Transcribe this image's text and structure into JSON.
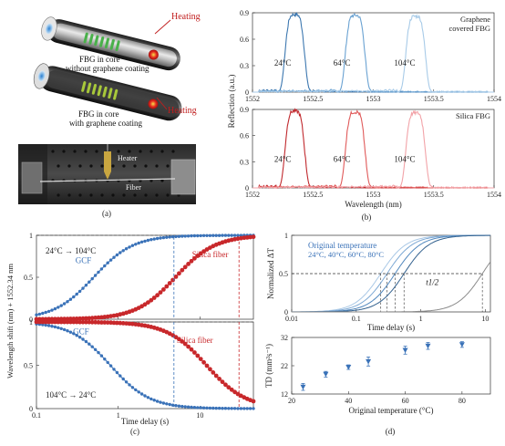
{
  "panel_a": {
    "labels": {
      "heating": "Heating",
      "fiber_top": [
        "FBG in core",
        "without graphene coating"
      ],
      "fiber_bottom": [
        "FBG in core",
        "with graphene coating"
      ],
      "heater": "Heater",
      "fiber": "Fiber"
    },
    "caption": "(a)"
  },
  "captions": {
    "b": "(b)",
    "c": "(c)",
    "d": "(d)"
  },
  "chart_data": [
    {
      "id": "b-top",
      "type": "line",
      "legend_text": [
        "Graphene",
        "covered FBG"
      ],
      "ylabel": "Reflection (a.u.)",
      "xlim": [
        1552,
        1554
      ],
      "ylim": [
        0,
        0.9
      ],
      "xticks": [
        "1552",
        "1552.5",
        "1553",
        "1553.5",
        "1554"
      ],
      "yticks": [
        "0",
        "0.3",
        "0.6",
        "0.9"
      ],
      "annotations": [
        "24°C",
        "64°C",
        "104°C"
      ],
      "series": [
        {
          "center": 1552.35,
          "peak": 0.88,
          "color": "#3d78b0"
        },
        {
          "center": 1552.85,
          "peak": 0.87,
          "color": "#6aa2d2"
        },
        {
          "center": 1553.35,
          "peak": 0.86,
          "color": "#a8cbe8"
        }
      ]
    },
    {
      "id": "b-bottom",
      "type": "line",
      "legend_text": [
        "Silica FBG"
      ],
      "xlabel": "Wavelength (nm)",
      "xlim": [
        1552,
        1554
      ],
      "ylim": [
        0,
        0.9
      ],
      "xticks": [
        "1552",
        "1552.5",
        "1553",
        "1553.5",
        "1554"
      ],
      "yticks": [
        "0",
        "0.3",
        "0.6",
        "0.9"
      ],
      "annotations": [
        "24°C",
        "64°C",
        "104°C"
      ],
      "series": [
        {
          "center": 1552.35,
          "peak": 0.88,
          "color": "#c0282d"
        },
        {
          "center": 1552.85,
          "peak": 0.87,
          "color": "#e05a5a"
        },
        {
          "center": 1553.35,
          "peak": 0.86,
          "color": "#f2a3a8"
        }
      ]
    },
    {
      "id": "c",
      "type": "scatter",
      "ylabel": "Wavelength shift (nm) + 1552.34 nm",
      "xlabel": "Time delay (s)",
      "xscale": "log",
      "xlim": [
        0.1,
        45
      ],
      "ylim": [
        0,
        1
      ],
      "xticks": [
        "0.1",
        "1",
        "10"
      ],
      "yticks": [
        "0",
        "0.5",
        "1"
      ],
      "top_panel": {
        "label": "24°C → 104°C",
        "series": [
          {
            "name": "GCF",
            "color": "#3a72b8",
            "t_half": 0.5,
            "shape": "heating"
          },
          {
            "name": "Silica fiber",
            "color": "#c8282b",
            "t_half": 5,
            "shape": "heating"
          }
        ],
        "markers": [
          4.8,
          30
        ]
      },
      "bottom_panel": {
        "label": "104°C → 24°C",
        "series": [
          {
            "name": "GCF",
            "color": "#3a72b8",
            "t_half": 0.8,
            "shape": "cooling"
          },
          {
            "name": "Silica fiber",
            "color": "#c8282b",
            "t_half": 12,
            "shape": "cooling"
          }
        ],
        "markers": [
          4.8,
          30
        ]
      }
    },
    {
      "id": "d-top",
      "type": "line",
      "ylabel": "Normalized ΔT",
      "xlabel": "Time delay (s)",
      "xscale": "log",
      "xlim": [
        0.01,
        12
      ],
      "ylim": [
        0,
        1
      ],
      "xticks": [
        "0.01",
        "0.1",
        "1",
        "10"
      ],
      "yticks": [
        "0",
        "0.5",
        "1"
      ],
      "legend_title": "Original temperature",
      "legend_temps": "24°C, 40°C, 60°C, 80°C",
      "annotation": "t1/2",
      "series": [
        {
          "t_half": 0.24,
          "color": "#a9c8e6"
        },
        {
          "t_half": 0.3,
          "color": "#7ca8d4"
        },
        {
          "t_half": 0.4,
          "color": "#4f86bd"
        },
        {
          "t_half": 0.55,
          "color": "#34628f"
        },
        {
          "t_half": 9,
          "color": "#8a8a8a"
        }
      ]
    },
    {
      "id": "d-bottom",
      "type": "scatter",
      "ylabel": "TD (mm²s⁻¹)",
      "xlabel": "Original temperature (°C)",
      "xlim": [
        20,
        90
      ],
      "ylim": [
        12,
        32
      ],
      "xticks": [
        "20",
        "40",
        "60",
        "80"
      ],
      "yticks": [
        "12",
        "22",
        "32"
      ],
      "x": [
        24,
        32,
        40,
        47,
        60,
        68,
        80
      ],
      "y": [
        14.5,
        19,
        21.5,
        23.5,
        27.5,
        29,
        29.5
      ],
      "err": [
        1.2,
        1.0,
        0.8,
        1.6,
        1.4,
        1.2,
        1.0
      ],
      "color": "#3a72b8"
    }
  ]
}
